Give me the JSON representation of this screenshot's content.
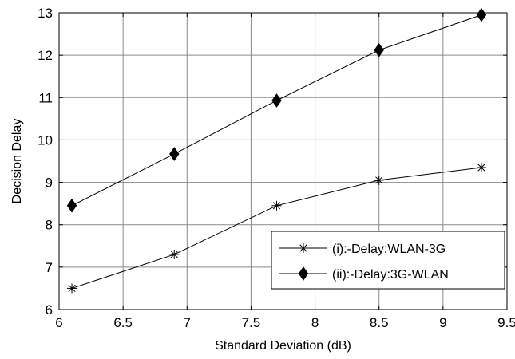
{
  "chart_data": {
    "type": "line",
    "title": "",
    "xlabel": "Standard Deviation (dB)",
    "ylabel": "Decision Delay",
    "xlim": [
      6,
      9.5
    ],
    "ylim": [
      6,
      13
    ],
    "xticks": [
      6,
      6.5,
      7,
      7.5,
      8,
      8.5,
      9,
      9.5
    ],
    "yticks": [
      6,
      7,
      8,
      9,
      10,
      11,
      12,
      13
    ],
    "xtick_labels": [
      "6",
      "6.5",
      "7",
      "7.5",
      "8",
      "8.5",
      "9",
      "9.5"
    ],
    "ytick_labels": [
      "6",
      "7",
      "8",
      "9",
      "10",
      "11",
      "12",
      "13"
    ],
    "grid": true,
    "legend_position": "bottom-right",
    "series": [
      {
        "name": "(i):-Delay:WLAN-3G",
        "marker": "star",
        "color": "#000000",
        "x": [
          6.1,
          6.9,
          7.7,
          8.5,
          9.3
        ],
        "y": [
          6.5,
          7.3,
          8.45,
          9.05,
          9.35
        ]
      },
      {
        "name": "(ii):-Delay:3G-WLAN",
        "marker": "diamond",
        "color": "#000000",
        "x": [
          6.1,
          6.9,
          7.7,
          8.5,
          9.3
        ],
        "y": [
          8.45,
          9.67,
          10.93,
          12.12,
          12.95
        ]
      }
    ]
  }
}
